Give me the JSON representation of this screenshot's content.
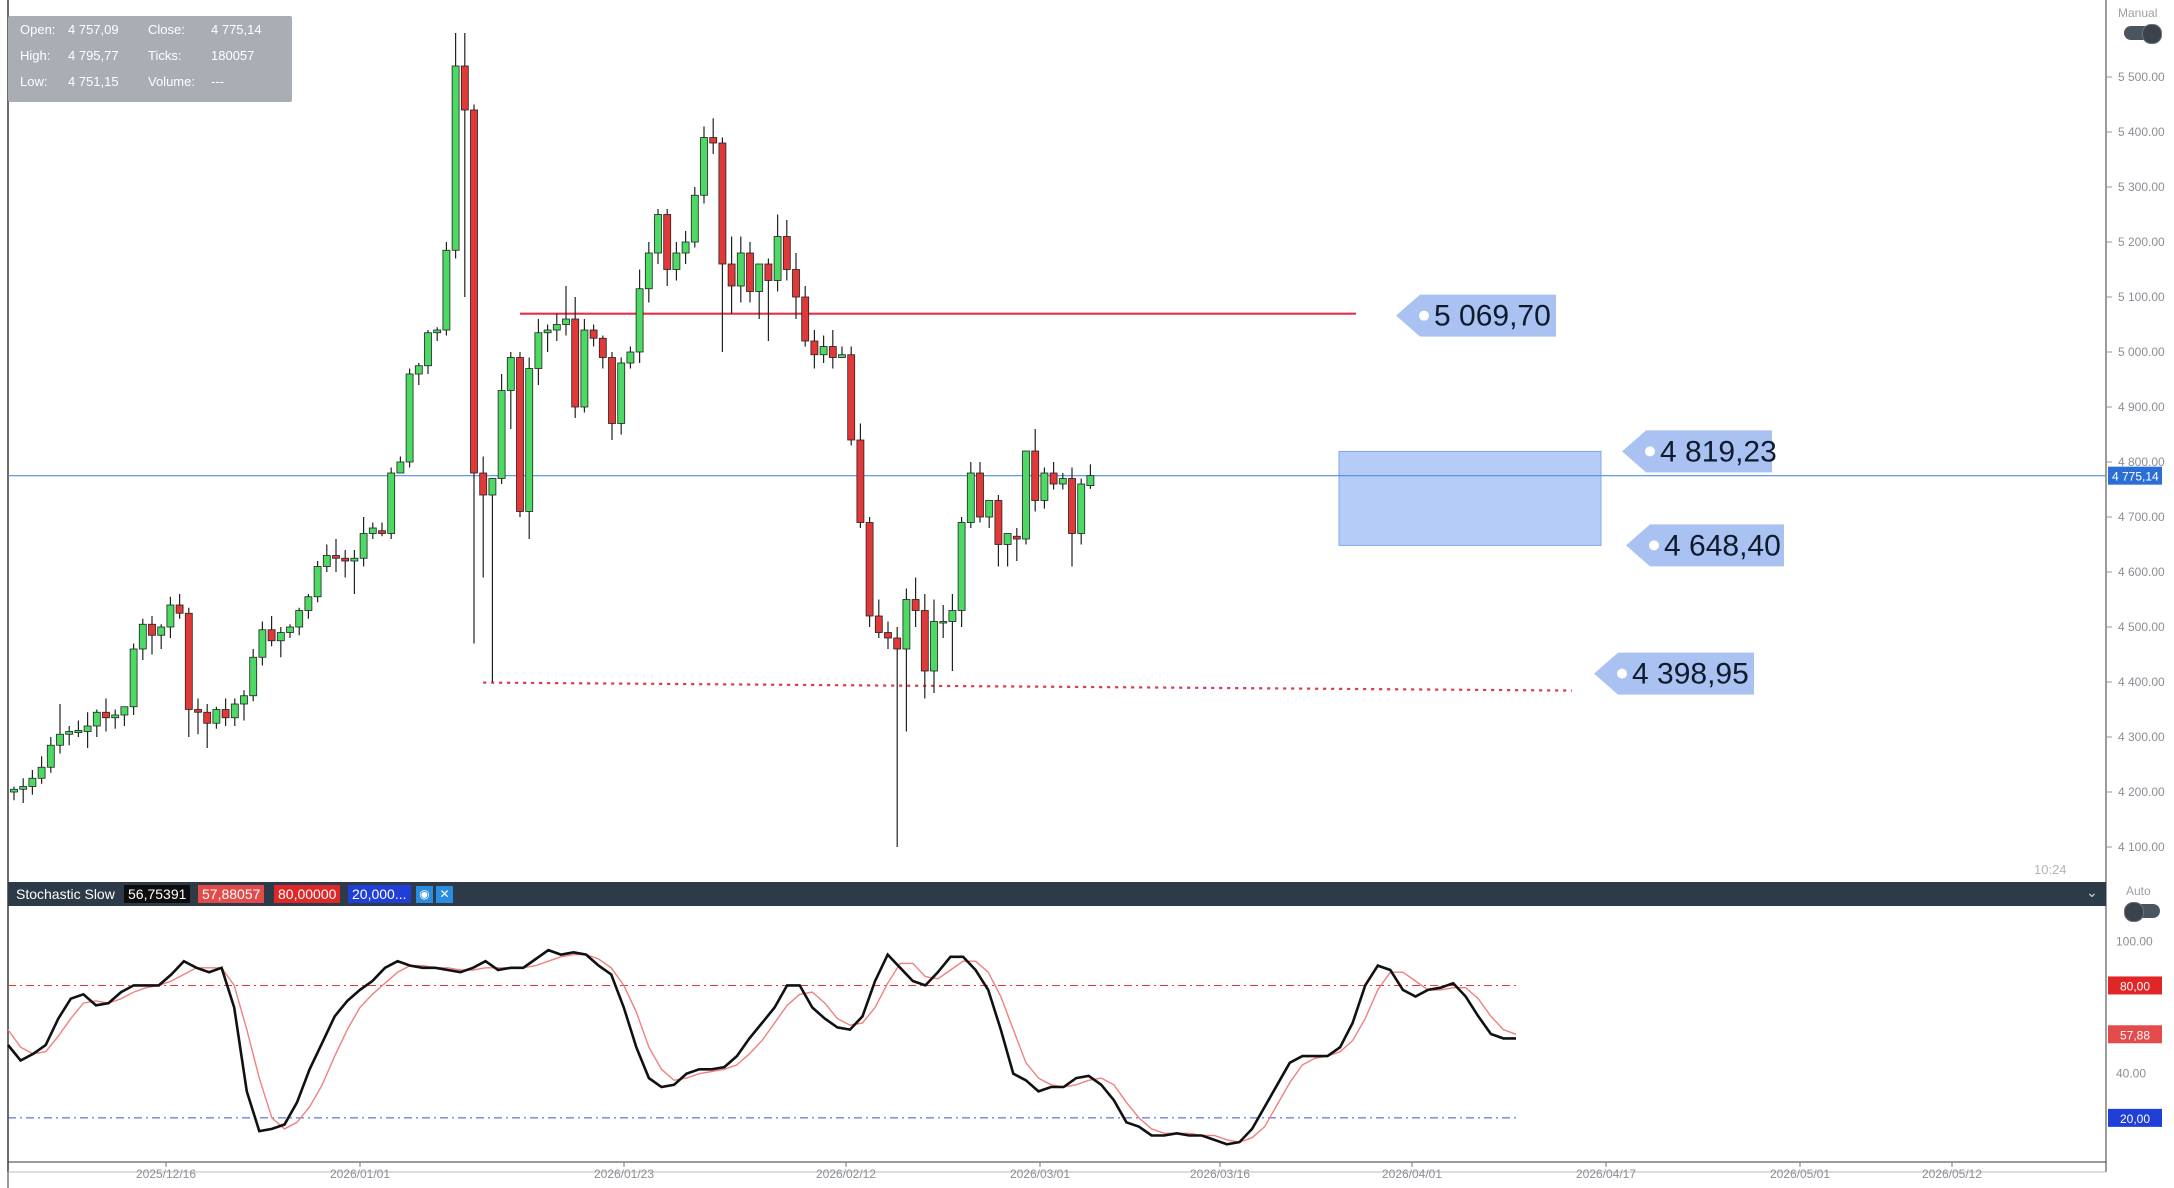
{
  "ohlc_panel": {
    "open_label": "Open:",
    "open_value": "4 757,09",
    "close_label": "Close:",
    "close_value": "4 775,14",
    "high_label": "High:",
    "high_value": "4 795,77",
    "ticks_label": "Ticks:",
    "ticks_value": "180057",
    "low_label": "Low:",
    "low_value": "4 751,15",
    "volume_label": "Volume:",
    "volume_value": "---"
  },
  "mode_top": "Manual",
  "mode_bottom": "Auto",
  "time_readout": "10:24",
  "indicator": {
    "title": "Stochastic Slow",
    "k_value": "56,75391",
    "d_value": "57,88057",
    "upper_level": "80,00000",
    "lower_level": "20,000...",
    "eye_icon": "eye-icon",
    "close_icon": "close-icon"
  },
  "chart_data": [
    {
      "type": "candlestick",
      "ylim": [
        4040,
        5640
      ],
      "y_ticks": [
        4100,
        4200,
        4300,
        4400,
        4500,
        4600,
        4700,
        4800,
        4900,
        5000,
        5100,
        5200,
        5300,
        5400,
        5500
      ],
      "y_tick_labels": [
        "4 100.00",
        "4 200.00",
        "4 300.00",
        "4 400.00",
        "4 500.00",
        "4 600.00",
        "4 700.00",
        "4 800.00",
        "4 900.00",
        "5 000.00",
        "5 100.00",
        "5 200.00",
        "5 300.00",
        "5 400.00",
        "5 500.00"
      ],
      "x_tick_labels": [
        "2025/12/16",
        "2026/01/01",
        "2026/01/23",
        "2026/02/12",
        "2026/03/01",
        "2026/03/16",
        "2026/04/01",
        "2026/04/17",
        "2026/05/01",
        "2026/05/12"
      ],
      "last_price": 4775.14,
      "last_price_label": "4 775,14",
      "up_color": "#4cd964",
      "down_color": "#e23838",
      "candles": [
        {
          "o": 4200,
          "h": 4210,
          "l": 4185,
          "c": 4205
        },
        {
          "o": 4205,
          "h": 4225,
          "l": 4180,
          "c": 4210
        },
        {
          "o": 4210,
          "h": 4240,
          "l": 4195,
          "c": 4225
        },
        {
          "o": 4225,
          "h": 4265,
          "l": 4215,
          "c": 4245
        },
        {
          "o": 4245,
          "h": 4300,
          "l": 4235,
          "c": 4285
        },
        {
          "o": 4285,
          "h": 4360,
          "l": 4270,
          "c": 4305
        },
        {
          "o": 4305,
          "h": 4320,
          "l": 4285,
          "c": 4310
        },
        {
          "o": 4308,
          "h": 4330,
          "l": 4300,
          "c": 4312
        },
        {
          "o": 4310,
          "h": 4345,
          "l": 4280,
          "c": 4320
        },
        {
          "o": 4320,
          "h": 4350,
          "l": 4300,
          "c": 4345
        },
        {
          "o": 4345,
          "h": 4370,
          "l": 4310,
          "c": 4335
        },
        {
          "o": 4335,
          "h": 4350,
          "l": 4315,
          "c": 4340
        },
        {
          "o": 4340,
          "h": 4355,
          "l": 4320,
          "c": 4355
        },
        {
          "o": 4355,
          "h": 4470,
          "l": 4340,
          "c": 4460
        },
        {
          "o": 4460,
          "h": 4515,
          "l": 4440,
          "c": 4505
        },
        {
          "o": 4505,
          "h": 4520,
          "l": 4450,
          "c": 4485
        },
        {
          "o": 4485,
          "h": 4505,
          "l": 4460,
          "c": 4500
        },
        {
          "o": 4500,
          "h": 4555,
          "l": 4480,
          "c": 4540
        },
        {
          "o": 4540,
          "h": 4560,
          "l": 4515,
          "c": 4525
        },
        {
          "o": 4525,
          "h": 4535,
          "l": 4300,
          "c": 4350
        },
        {
          "o": 4350,
          "h": 4370,
          "l": 4305,
          "c": 4345
        },
        {
          "o": 4345,
          "h": 4360,
          "l": 4280,
          "c": 4325
        },
        {
          "o": 4325,
          "h": 4355,
          "l": 4315,
          "c": 4350
        },
        {
          "o": 4350,
          "h": 4370,
          "l": 4320,
          "c": 4335
        },
        {
          "o": 4335,
          "h": 4370,
          "l": 4320,
          "c": 4360
        },
        {
          "o": 4360,
          "h": 4385,
          "l": 4330,
          "c": 4375
        },
        {
          "o": 4375,
          "h": 4460,
          "l": 4365,
          "c": 4445
        },
        {
          "o": 4445,
          "h": 4510,
          "l": 4430,
          "c": 4495
        },
        {
          "o": 4495,
          "h": 4520,
          "l": 4465,
          "c": 4475
        },
        {
          "o": 4475,
          "h": 4500,
          "l": 4445,
          "c": 4490
        },
        {
          "o": 4490,
          "h": 4505,
          "l": 4480,
          "c": 4500
        },
        {
          "o": 4500,
          "h": 4535,
          "l": 4485,
          "c": 4530
        },
        {
          "o": 4530,
          "h": 4560,
          "l": 4515,
          "c": 4555
        },
        {
          "o": 4555,
          "h": 4620,
          "l": 4545,
          "c": 4610
        },
        {
          "o": 4610,
          "h": 4650,
          "l": 4600,
          "c": 4630
        },
        {
          "o": 4630,
          "h": 4660,
          "l": 4600,
          "c": 4625
        },
        {
          "o": 4625,
          "h": 4640,
          "l": 4590,
          "c": 4620
        },
        {
          "o": 4620,
          "h": 4640,
          "l": 4560,
          "c": 4625
        },
        {
          "o": 4625,
          "h": 4700,
          "l": 4610,
          "c": 4670
        },
        {
          "o": 4670,
          "h": 4690,
          "l": 4660,
          "c": 4680
        },
        {
          "o": 4675,
          "h": 4690,
          "l": 4665,
          "c": 4670
        },
        {
          "o": 4670,
          "h": 4790,
          "l": 4660,
          "c": 4780
        },
        {
          "o": 4780,
          "h": 4810,
          "l": 4780,
          "c": 4800
        },
        {
          "o": 4800,
          "h": 4970,
          "l": 4790,
          "c": 4960
        },
        {
          "o": 4960,
          "h": 4980,
          "l": 4940,
          "c": 4975
        },
        {
          "o": 4975,
          "h": 5040,
          "l": 4960,
          "c": 5035
        },
        {
          "o": 5035,
          "h": 5045,
          "l": 5020,
          "c": 5040
        },
        {
          "o": 5040,
          "h": 5200,
          "l": 5030,
          "c": 5185
        },
        {
          "o": 5185,
          "h": 5580,
          "l": 5170,
          "c": 5520
        },
        {
          "o": 5520,
          "h": 5580,
          "l": 5100,
          "c": 5440
        },
        {
          "o": 5440,
          "h": 5450,
          "l": 4470,
          "c": 4780
        },
        {
          "o": 4780,
          "h": 4810,
          "l": 4590,
          "c": 4740
        },
        {
          "o": 4740,
          "h": 4770,
          "l": 4400,
          "c": 4770
        },
        {
          "o": 4770,
          "h": 4960,
          "l": 4760,
          "c": 4930
        },
        {
          "o": 4930,
          "h": 5000,
          "l": 4860,
          "c": 4990
        },
        {
          "o": 4990,
          "h": 5000,
          "l": 4700,
          "c": 4710
        },
        {
          "o": 4710,
          "h": 4990,
          "l": 4660,
          "c": 4970
        },
        {
          "o": 4970,
          "h": 5060,
          "l": 4940,
          "c": 5035
        },
        {
          "o": 5035,
          "h": 5050,
          "l": 5000,
          "c": 5040
        },
        {
          "o": 5040,
          "h": 5070,
          "l": 5020,
          "c": 5050
        },
        {
          "o": 5050,
          "h": 5120,
          "l": 5030,
          "c": 5060
        },
        {
          "o": 5060,
          "h": 5100,
          "l": 4880,
          "c": 4900
        },
        {
          "o": 4900,
          "h": 5060,
          "l": 4890,
          "c": 5040
        },
        {
          "o": 5040,
          "h": 5050,
          "l": 5010,
          "c": 5025
        },
        {
          "o": 5025,
          "h": 5030,
          "l": 4970,
          "c": 4990
        },
        {
          "o": 4990,
          "h": 5000,
          "l": 4840,
          "c": 4870
        },
        {
          "o": 4870,
          "h": 4990,
          "l": 4850,
          "c": 4980
        },
        {
          "o": 4980,
          "h": 5010,
          "l": 4970,
          "c": 5000
        },
        {
          "o": 5000,
          "h": 5150,
          "l": 4980,
          "c": 5115
        },
        {
          "o": 5115,
          "h": 5200,
          "l": 5090,
          "c": 5180
        },
        {
          "o": 5180,
          "h": 5260,
          "l": 5160,
          "c": 5250
        },
        {
          "o": 5250,
          "h": 5260,
          "l": 5120,
          "c": 5150
        },
        {
          "o": 5150,
          "h": 5200,
          "l": 5130,
          "c": 5180
        },
        {
          "o": 5180,
          "h": 5220,
          "l": 5160,
          "c": 5200
        },
        {
          "o": 5200,
          "h": 5300,
          "l": 5190,
          "c": 5285
        },
        {
          "o": 5285,
          "h": 5410,
          "l": 5270,
          "c": 5390
        },
        {
          "o": 5390,
          "h": 5425,
          "l": 5360,
          "c": 5380
        },
        {
          "o": 5380,
          "h": 5390,
          "l": 5000,
          "c": 5160
        },
        {
          "o": 5160,
          "h": 5210,
          "l": 5070,
          "c": 5120
        },
        {
          "o": 5120,
          "h": 5210,
          "l": 5090,
          "c": 5180
        },
        {
          "o": 5180,
          "h": 5200,
          "l": 5090,
          "c": 5110
        },
        {
          "o": 5110,
          "h": 5160,
          "l": 5060,
          "c": 5160
        },
        {
          "o": 5160,
          "h": 5170,
          "l": 5020,
          "c": 5130
        },
        {
          "o": 5130,
          "h": 5250,
          "l": 5110,
          "c": 5210
        },
        {
          "o": 5210,
          "h": 5240,
          "l": 5130,
          "c": 5150
        },
        {
          "o": 5150,
          "h": 5180,
          "l": 5060,
          "c": 5100
        },
        {
          "o": 5100,
          "h": 5120,
          "l": 5010,
          "c": 5020
        },
        {
          "o": 5020,
          "h": 5040,
          "l": 4970,
          "c": 4995
        },
        {
          "o": 4995,
          "h": 5030,
          "l": 4980,
          "c": 5010
        },
        {
          "o": 5010,
          "h": 5040,
          "l": 4970,
          "c": 4990
        },
        {
          "o": 4990,
          "h": 5010,
          "l": 4990,
          "c": 4995
        },
        {
          "o": 4995,
          "h": 5010,
          "l": 4830,
          "c": 4840
        },
        {
          "o": 4840,
          "h": 4870,
          "l": 4680,
          "c": 4690
        },
        {
          "o": 4690,
          "h": 4700,
          "l": 4500,
          "c": 4520
        },
        {
          "o": 4520,
          "h": 4550,
          "l": 4480,
          "c": 4490
        },
        {
          "o": 4490,
          "h": 4510,
          "l": 4460,
          "c": 4480
        },
        {
          "o": 4480,
          "h": 4500,
          "l": 4100,
          "c": 4460
        },
        {
          "o": 4460,
          "h": 4570,
          "l": 4310,
          "c": 4550
        },
        {
          "o": 4550,
          "h": 4590,
          "l": 4500,
          "c": 4530
        },
        {
          "o": 4530,
          "h": 4560,
          "l": 4370,
          "c": 4420
        },
        {
          "o": 4420,
          "h": 4550,
          "l": 4380,
          "c": 4510
        },
        {
          "o": 4510,
          "h": 4540,
          "l": 4480,
          "c": 4510
        },
        {
          "o": 4510,
          "h": 4560,
          "l": 4420,
          "c": 4530
        },
        {
          "o": 4530,
          "h": 4700,
          "l": 4500,
          "c": 4690
        },
        {
          "o": 4690,
          "h": 4800,
          "l": 4680,
          "c": 4780
        },
        {
          "o": 4780,
          "h": 4800,
          "l": 4690,
          "c": 4700
        },
        {
          "o": 4700,
          "h": 4730,
          "l": 4680,
          "c": 4730
        },
        {
          "o": 4730,
          "h": 4740,
          "l": 4610,
          "c": 4650
        },
        {
          "o": 4650,
          "h": 4670,
          "l": 4610,
          "c": 4670
        },
        {
          "o": 4665,
          "h": 4680,
          "l": 4620,
          "c": 4660
        },
        {
          "o": 4660,
          "h": 4820,
          "l": 4650,
          "c": 4820
        },
        {
          "o": 4820,
          "h": 4860,
          "l": 4710,
          "c": 4730
        },
        {
          "o": 4730,
          "h": 4790,
          "l": 4715,
          "c": 4780
        },
        {
          "o": 4780,
          "h": 4800,
          "l": 4750,
          "c": 4760
        },
        {
          "o": 4760,
          "h": 4780,
          "l": 4750,
          "c": 4770
        },
        {
          "o": 4770,
          "h": 4790,
          "l": 4610,
          "c": 4670
        },
        {
          "o": 4670,
          "h": 4770,
          "l": 4650,
          "c": 4760
        },
        {
          "o": 4757.09,
          "h": 4795.77,
          "l": 4751.15,
          "c": 4775.14
        }
      ],
      "annotations": {
        "resistance_line": {
          "price": 5069.7,
          "label": "5 069,70",
          "color": "#e0304a"
        },
        "support_line": {
          "price": 4398.95,
          "label": "4 398,95",
          "color": "#e0304a",
          "style": "dotted"
        },
        "range_box": {
          "top": 4819.23,
          "bottom": 4648.4,
          "top_label": "4 819,23",
          "bottom_label": "4 648,40",
          "color": "#8fb0f5"
        }
      }
    },
    {
      "type": "line",
      "title": "Stochastic Slow",
      "ylim": [
        0,
        116
      ],
      "y_tick_labels": [
        "100.00",
        "40.00"
      ],
      "level_labels": [
        "80,00",
        "57,88",
        "20,00"
      ],
      "levels": [
        80,
        20
      ],
      "series": [
        {
          "name": "K",
          "color": "#111111",
          "values": [
            53,
            46,
            49,
            53,
            65,
            74,
            76,
            71,
            72,
            77,
            80,
            80,
            80,
            85,
            91,
            88,
            86,
            88,
            70,
            32,
            14,
            15,
            17,
            27,
            42,
            54,
            66,
            73,
            78,
            82,
            88,
            91,
            89,
            88,
            88,
            87,
            86,
            88,
            91,
            87,
            88,
            88,
            92,
            96,
            94,
            95,
            94,
            89,
            85,
            70,
            52,
            38,
            34,
            35,
            40,
            42,
            42,
            43,
            48,
            56,
            63,
            70,
            80,
            80,
            70,
            65,
            61,
            60,
            66,
            82,
            94,
            88,
            82,
            80,
            86,
            93,
            93,
            87,
            78,
            60,
            40,
            37,
            32,
            34,
            34,
            38,
            39,
            35,
            28,
            18,
            16,
            12,
            12,
            13,
            12,
            12,
            10,
            8,
            9,
            15,
            25,
            35,
            45,
            48,
            48,
            48,
            52,
            63,
            80,
            89,
            87,
            78,
            75,
            78,
            79,
            81,
            75,
            66,
            58,
            56,
            56
          ],
          "last": 56.75391
        },
        {
          "name": "D",
          "color": "#f08080",
          "values": [
            60,
            52,
            49,
            50,
            57,
            65,
            72,
            73,
            72,
            74,
            77,
            79,
            80,
            82,
            85,
            88,
            88,
            88,
            80,
            60,
            38,
            20,
            15,
            18,
            25,
            35,
            48,
            60,
            70,
            76,
            81,
            86,
            89,
            89,
            88,
            88,
            87,
            87,
            88,
            88,
            88,
            88,
            89,
            91,
            93,
            94,
            94,
            92,
            88,
            80,
            68,
            52,
            42,
            37,
            38,
            40,
            41,
            42,
            44,
            49,
            55,
            63,
            71,
            76,
            77,
            72,
            65,
            62,
            63,
            70,
            81,
            90,
            90,
            84,
            83,
            87,
            91,
            91,
            86,
            75,
            60,
            45,
            38,
            35,
            34,
            35,
            37,
            38,
            35,
            27,
            20,
            15,
            13,
            13,
            13,
            12,
            12,
            10,
            9,
            11,
            16,
            26,
            36,
            44,
            47,
            48,
            50,
            55,
            65,
            78,
            86,
            86,
            82,
            78,
            78,
            79,
            79,
            74,
            66,
            60,
            57.88
          ],
          "last": 57.88057
        }
      ]
    }
  ]
}
